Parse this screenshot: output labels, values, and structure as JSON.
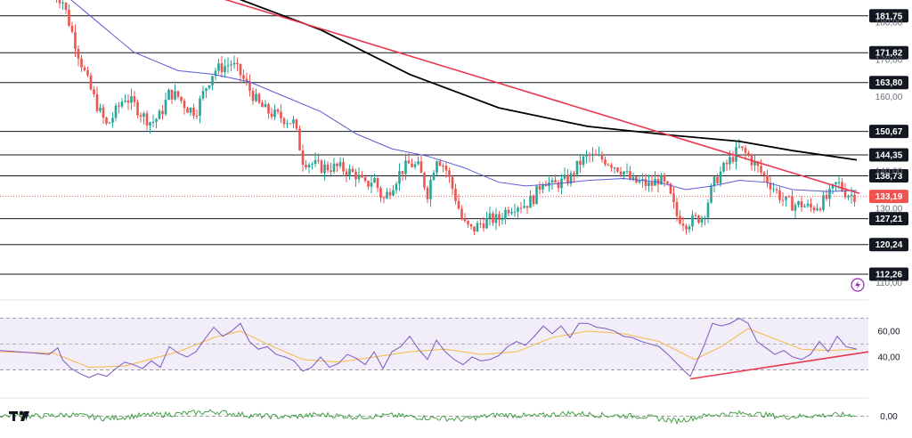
{
  "chart_data": {
    "type": "candlestick",
    "title": "",
    "price_axis": {
      "ylim": [
        107,
        186
      ],
      "ticks": [
        "180,00",
        "170,00",
        "160,00",
        "140,00",
        "130,00",
        "110,00"
      ],
      "tick_values": [
        180,
        170,
        160,
        140,
        130,
        110
      ]
    },
    "levels": [
      {
        "label": "181,75",
        "value": 181.75
      },
      {
        "label": "171,82",
        "value": 171.82
      },
      {
        "label": "163,80",
        "value": 163.8
      },
      {
        "label": "150,67",
        "value": 150.67
      },
      {
        "label": "144,35",
        "value": 144.35
      },
      {
        "label": "138,73",
        "value": 138.73
      },
      {
        "label": "127,21",
        "value": 127.21
      },
      {
        "label": "120,24",
        "value": 120.24
      },
      {
        "label": "112,26",
        "value": 112.26
      }
    ],
    "last_price": {
      "label": "133,19",
      "value": 133.19
    },
    "moving_averages": [
      {
        "name": "long-ma",
        "color": "#000000",
        "values": [
          [
            -5,
            188
          ],
          [
            60,
            189
          ],
          [
            150,
            189
          ],
          [
            260,
            187
          ],
          [
            360,
            178
          ],
          [
            460,
            166
          ],
          [
            560,
            157
          ],
          [
            660,
            152
          ],
          [
            760,
            149.5
          ],
          [
            830,
            148
          ],
          [
            890,
            145.5
          ],
          [
            962,
            143
          ]
        ]
      },
      {
        "name": "short-ma",
        "color": "#5b5bd6",
        "values": [
          [
            70,
            188
          ],
          [
            110,
            180
          ],
          [
            150,
            172
          ],
          [
            200,
            167
          ],
          [
            240,
            166
          ],
          [
            280,
            164
          ],
          [
            320,
            160
          ],
          [
            360,
            156
          ],
          [
            400,
            150
          ],
          [
            440,
            146
          ],
          [
            480,
            144
          ],
          [
            520,
            141
          ],
          [
            560,
            137
          ],
          [
            590,
            136
          ],
          [
            620,
            136.5
          ],
          [
            660,
            137.5
          ],
          [
            700,
            138
          ],
          [
            740,
            137
          ],
          [
            770,
            135
          ],
          [
            800,
            136
          ],
          [
            830,
            137.5
          ],
          [
            860,
            137
          ],
          [
            890,
            135
          ],
          [
            930,
            134.5
          ],
          [
            962,
            134.8
          ]
        ]
      }
    ],
    "trendline": {
      "name": "downtrend-line",
      "color": "#e8384f",
      "points": [
        [
          200,
          190
        ],
        [
          965,
          134
        ]
      ]
    },
    "candles": {
      "colors": {
        "up": "#26a69a",
        "down": "#ef5350"
      },
      "anchors": [
        [
          60,
          188
        ],
        [
          70,
          186
        ],
        [
          80,
          178
        ],
        [
          90,
          170
        ],
        [
          100,
          163
        ],
        [
          110,
          157
        ],
        [
          120,
          152
        ],
        [
          130,
          156
        ],
        [
          140,
          160
        ],
        [
          150,
          158
        ],
        [
          160,
          155
        ],
        [
          170,
          153
        ],
        [
          180,
          155
        ],
        [
          190,
          161
        ],
        [
          200,
          160
        ],
        [
          210,
          157
        ],
        [
          220,
          156
        ],
        [
          230,
          162
        ],
        [
          240,
          167
        ],
        [
          250,
          168
        ],
        [
          260,
          169
        ],
        [
          270,
          166
        ],
        [
          280,
          162
        ],
        [
          290,
          158
        ],
        [
          300,
          156
        ],
        [
          310,
          155
        ],
        [
          320,
          154
        ],
        [
          330,
          153
        ],
        [
          340,
          143
        ],
        [
          350,
          142
        ],
        [
          360,
          141
        ],
        [
          380,
          141
        ],
        [
          400,
          139
        ],
        [
          410,
          136
        ],
        [
          420,
          138
        ],
        [
          430,
          132
        ],
        [
          440,
          136
        ],
        [
          450,
          140
        ],
        [
          460,
          142
        ],
        [
          470,
          141
        ],
        [
          480,
          134
        ],
        [
          490,
          144
        ],
        [
          500,
          141
        ],
        [
          510,
          134
        ],
        [
          520,
          126
        ],
        [
          530,
          124
        ],
        [
          540,
          126
        ],
        [
          550,
          127
        ],
        [
          560,
          127
        ],
        [
          570,
          130
        ],
        [
          580,
          131
        ],
        [
          590,
          131
        ],
        [
          600,
          133
        ],
        [
          610,
          138
        ],
        [
          620,
          136
        ],
        [
          630,
          137
        ],
        [
          640,
          138
        ],
        [
          650,
          142
        ],
        [
          660,
          144
        ],
        [
          680,
          143
        ],
        [
          700,
          140
        ],
        [
          710,
          137
        ],
        [
          720,
          137
        ],
        [
          730,
          136
        ],
        [
          740,
          138
        ],
        [
          750,
          135
        ],
        [
          760,
          128
        ],
        [
          770,
          126
        ],
        [
          780,
          127
        ],
        [
          790,
          128
        ],
        [
          800,
          136
        ],
        [
          810,
          140
        ],
        [
          820,
          143
        ],
        [
          830,
          146
        ],
        [
          840,
          144
        ],
        [
          850,
          141
        ],
        [
          860,
          138
        ],
        [
          870,
          135
        ],
        [
          880,
          132
        ],
        [
          890,
          131
        ],
        [
          900,
          131
        ],
        [
          910,
          130
        ],
        [
          920,
          131
        ],
        [
          930,
          133
        ],
        [
          940,
          137
        ],
        [
          950,
          134
        ],
        [
          962,
          133.2
        ]
      ]
    },
    "rsi": {
      "ticks": [
        "60,00",
        "40,00"
      ],
      "tick_values": [
        60,
        40
      ],
      "bands": [
        30,
        70
      ],
      "ylim": [
        20,
        82
      ],
      "line_color": "#7e57c2",
      "signal_color": "#f5b942",
      "trendline": {
        "color": "#e8384f",
        "points": [
          [
            775,
            23
          ],
          [
            975,
            44
          ]
        ]
      },
      "values": [
        [
          0,
          45
        ],
        [
          20,
          44
        ],
        [
          40,
          43
        ],
        [
          55,
          42
        ],
        [
          65,
          47
        ],
        [
          70,
          38
        ],
        [
          80,
          31
        ],
        [
          90,
          27
        ],
        [
          100,
          24
        ],
        [
          110,
          27
        ],
        [
          120,
          25
        ],
        [
          130,
          31
        ],
        [
          140,
          36
        ],
        [
          150,
          34
        ],
        [
          160,
          31
        ],
        [
          170,
          37
        ],
        [
          180,
          32
        ],
        [
          190,
          48
        ],
        [
          200,
          43
        ],
        [
          210,
          40
        ],
        [
          220,
          44
        ],
        [
          230,
          54
        ],
        [
          240,
          63
        ],
        [
          250,
          56
        ],
        [
          260,
          60
        ],
        [
          270,
          66
        ],
        [
          280,
          52
        ],
        [
          290,
          46
        ],
        [
          300,
          48
        ],
        [
          310,
          42
        ],
        [
          320,
          40
        ],
        [
          330,
          37
        ],
        [
          340,
          29
        ],
        [
          350,
          32
        ],
        [
          360,
          40
        ],
        [
          370,
          32
        ],
        [
          380,
          35
        ],
        [
          390,
          42
        ],
        [
          400,
          39
        ],
        [
          410,
          34
        ],
        [
          420,
          44
        ],
        [
          430,
          31
        ],
        [
          440,
          44
        ],
        [
          450,
          48
        ],
        [
          460,
          56
        ],
        [
          470,
          46
        ],
        [
          480,
          38
        ],
        [
          490,
          53
        ],
        [
          500,
          44
        ],
        [
          510,
          38
        ],
        [
          520,
          34
        ],
        [
          530,
          40
        ],
        [
          540,
          37
        ],
        [
          550,
          38
        ],
        [
          560,
          41
        ],
        [
          570,
          48
        ],
        [
          580,
          52
        ],
        [
          590,
          49
        ],
        [
          600,
          56
        ],
        [
          610,
          64
        ],
        [
          620,
          58
        ],
        [
          630,
          64
        ],
        [
          640,
          55
        ],
        [
          650,
          66
        ],
        [
          660,
          66
        ],
        [
          670,
          63
        ],
        [
          680,
          62
        ],
        [
          690,
          60
        ],
        [
          700,
          56
        ],
        [
          710,
          55
        ],
        [
          720,
          52
        ],
        [
          730,
          50
        ],
        [
          740,
          48
        ],
        [
          750,
          42
        ],
        [
          760,
          35
        ],
        [
          770,
          28
        ],
        [
          775,
          25
        ],
        [
          790,
          48
        ],
        [
          800,
          66
        ],
        [
          810,
          64
        ],
        [
          820,
          66
        ],
        [
          830,
          70
        ],
        [
          840,
          66
        ],
        [
          850,
          52
        ],
        [
          860,
          47
        ],
        [
          870,
          42
        ],
        [
          880,
          45
        ],
        [
          890,
          40
        ],
        [
          900,
          38
        ],
        [
          910,
          42
        ],
        [
          920,
          52
        ],
        [
          930,
          44
        ],
        [
          940,
          56
        ],
        [
          950,
          48
        ],
        [
          962,
          46
        ]
      ],
      "signal": [
        [
          0,
          44
        ],
        [
          60,
          43
        ],
        [
          100,
          32
        ],
        [
          140,
          33
        ],
        [
          200,
          44
        ],
        [
          240,
          55
        ],
        [
          270,
          60
        ],
        [
          300,
          50
        ],
        [
          340,
          38
        ],
        [
          380,
          36
        ],
        [
          420,
          40
        ],
        [
          460,
          44
        ],
        [
          500,
          46
        ],
        [
          540,
          42
        ],
        [
          580,
          44
        ],
        [
          620,
          55
        ],
        [
          660,
          60
        ],
        [
          700,
          58
        ],
        [
          740,
          52
        ],
        [
          780,
          38
        ],
        [
          810,
          48
        ],
        [
          840,
          62
        ],
        [
          870,
          54
        ],
        [
          900,
          46
        ],
        [
          930,
          45
        ],
        [
          962,
          46
        ]
      ]
    },
    "oscillator": {
      "ticks": [
        "0,00"
      ],
      "tick_values": [
        0
      ],
      "ylim": [
        -1,
        1
      ],
      "line_color": "#43a047",
      "values": [
        [
          0,
          0.05
        ],
        [
          40,
          0.0
        ],
        [
          80,
          0.1
        ],
        [
          120,
          -0.15
        ],
        [
          160,
          0.05
        ],
        [
          200,
          0.15
        ],
        [
          240,
          0.3
        ],
        [
          280,
          0.05
        ],
        [
          320,
          -0.05
        ],
        [
          360,
          0.1
        ],
        [
          400,
          -0.05
        ],
        [
          440,
          0.05
        ],
        [
          480,
          -0.1
        ],
        [
          520,
          -0.2
        ],
        [
          560,
          0.1
        ],
        [
          600,
          0.0
        ],
        [
          640,
          0.2
        ],
        [
          680,
          0.05
        ],
        [
          720,
          0.0
        ],
        [
          760,
          -0.3
        ],
        [
          800,
          0.1
        ],
        [
          840,
          0.2
        ],
        [
          880,
          -0.05
        ],
        [
          920,
          0.05
        ],
        [
          962,
          0.1
        ]
      ]
    }
  }
}
